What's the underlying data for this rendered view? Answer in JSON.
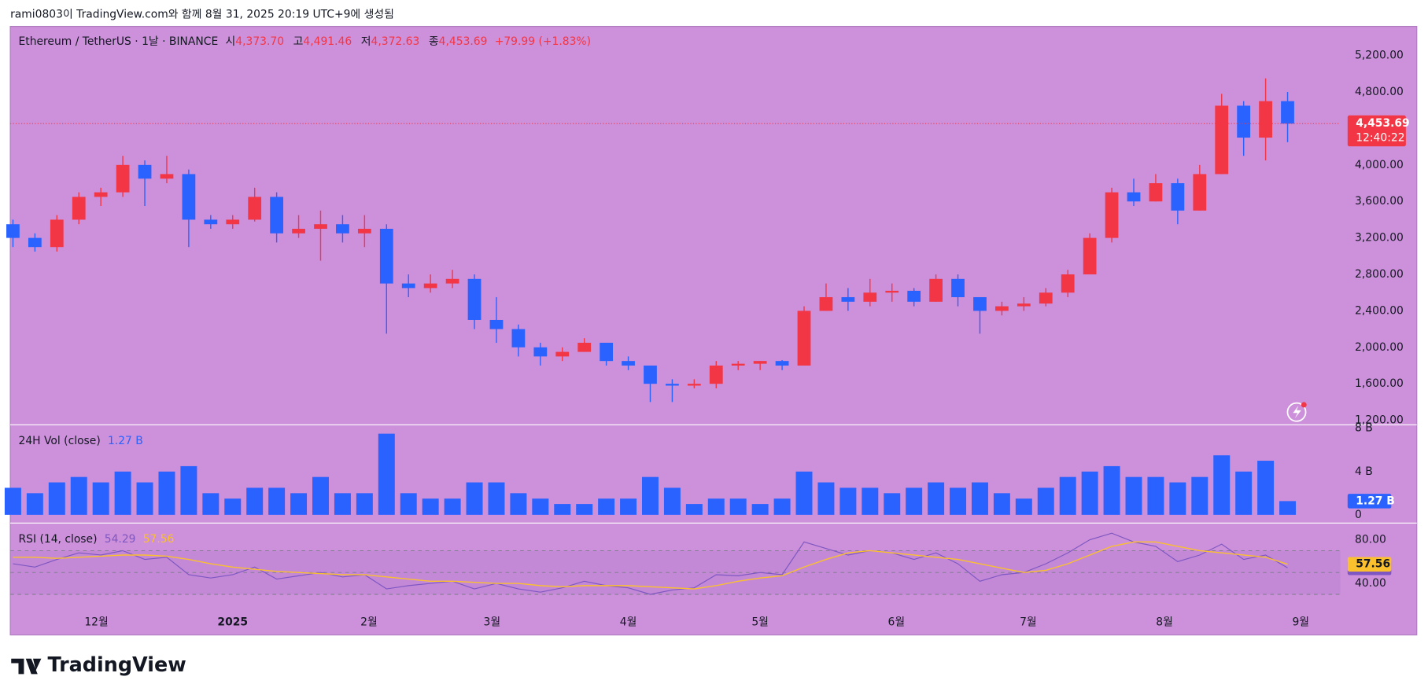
{
  "header": {
    "created": "rami0803이 TradingView.com와 함께 8월 31, 2025 20:19 UTC+9에 생성됨"
  },
  "footer": {
    "brand": "TradingView"
  },
  "chart_data": [
    {
      "type": "candlestick",
      "title": "Ethereum / TetherUS · 1날 · BINANCE",
      "legend_items": [
        {
          "name": "시",
          "value": "4,373.70"
        },
        {
          "name": "고",
          "value": "4,491.46"
        },
        {
          "name": "저",
          "value": "4,372.63"
        },
        {
          "name": "종",
          "value": "4,453.69"
        }
      ],
      "change": "+79.99 (+1.83%)",
      "last_label": {
        "price": "4,453.69",
        "countdown": "12:40:22"
      },
      "up_color": "#f23645",
      "down_color": "#2962ff",
      "grid": false,
      "x": [
        0,
        5,
        10,
        15,
        20,
        25,
        30,
        35,
        40,
        45,
        50,
        55,
        60,
        65,
        70,
        75,
        80,
        85,
        90,
        95,
        100,
        105,
        110,
        115,
        120,
        125,
        130,
        135,
        140,
        145,
        150,
        155,
        160,
        165,
        170,
        175,
        180,
        185,
        190,
        195,
        200,
        205,
        210,
        215,
        220,
        225,
        230,
        235,
        240,
        245,
        250,
        255,
        260,
        265,
        270,
        275,
        280,
        285,
        290
      ],
      "open": [
        3350,
        3200,
        3100,
        3400,
        3650,
        3700,
        4000,
        3850,
        3900,
        3400,
        3350,
        3400,
        3650,
        3250,
        3300,
        3350,
        3250,
        3300,
        2700,
        2650,
        2700,
        2750,
        2300,
        2200,
        2000,
        1900,
        1950,
        2050,
        1850,
        1800,
        1600,
        1580,
        1600,
        1800,
        1820,
        1850,
        1800,
        2400,
        2550,
        2500,
        2600,
        2620,
        2500,
        2750,
        2550,
        2400,
        2450,
        2480,
        2600,
        2800,
        3200,
        3700,
        3600,
        3800,
        3500,
        3900,
        4650,
        4300,
        4700
      ],
      "high": [
        3400,
        3250,
        3450,
        3700,
        3750,
        4100,
        4050,
        4100,
        3950,
        3450,
        3450,
        3750,
        3700,
        3450,
        3500,
        3450,
        3450,
        3350,
        2800,
        2800,
        2850,
        2800,
        2550,
        2250,
        2050,
        2000,
        2100,
        2050,
        1900,
        1800,
        1650,
        1650,
        1850,
        1850,
        1850,
        1860,
        2450,
        2700,
        2650,
        2750,
        2700,
        2650,
        2800,
        2800,
        2550,
        2500,
        2550,
        2650,
        2850,
        3250,
        3750,
        3850,
        3900,
        3850,
        4000,
        4780,
        4700,
        4950,
        4800
      ],
      "low": [
        3100,
        3050,
        3050,
        3350,
        3550,
        3650,
        3550,
        3800,
        3100,
        3300,
        3300,
        3380,
        3150,
        3200,
        2950,
        3150,
        3100,
        2150,
        2550,
        2600,
        2650,
        2200,
        2050,
        1900,
        1800,
        1850,
        1950,
        1800,
        1750,
        1400,
        1400,
        1550,
        1550,
        1750,
        1750,
        1750,
        1800,
        2400,
        2400,
        2450,
        2500,
        2450,
        2500,
        2450,
        2150,
        2350,
        2400,
        2450,
        2550,
        2800,
        3150,
        3550,
        3600,
        3350,
        3500,
        3900,
        4100,
        4050,
        4250
      ],
      "close": [
        3200,
        3100,
        3400,
        3650,
        3700,
        4000,
        3850,
        3900,
        3400,
        3350,
        3400,
        3650,
        3250,
        3300,
        3350,
        3250,
        3300,
        2700,
        2650,
        2700,
        2750,
        2300,
        2200,
        2000,
        1900,
        1950,
        2050,
        1850,
        1800,
        1600,
        1580,
        1600,
        1800,
        1820,
        1850,
        1800,
        2400,
        2550,
        2500,
        2600,
        2620,
        2500,
        2750,
        2550,
        2400,
        2450,
        2480,
        2600,
        2800,
        3200,
        3700,
        3600,
        3800,
        3500,
        3900,
        4650,
        4300,
        4700,
        4453.69
      ],
      "xlim": [
        -0.6,
        302
      ],
      "ylim": [
        1150,
        5510
      ],
      "yticks": [
        {
          "value": 1200,
          "label": "1,200.00"
        },
        {
          "value": 1600,
          "label": "1,600.00"
        },
        {
          "value": 2000,
          "label": "2,000.00"
        },
        {
          "value": 2400,
          "label": "2,400.00"
        },
        {
          "value": 2800,
          "label": "2,800.00"
        },
        {
          "value": 3200,
          "label": "3,200.00"
        },
        {
          "value": 3600,
          "label": "3,600.00"
        },
        {
          "value": 4000,
          "label": "4,000.00"
        },
        {
          "value": 4800,
          "label": "4,800.00"
        },
        {
          "value": 5200,
          "label": "5,200.00"
        }
      ]
    },
    {
      "type": "bar",
      "title": "24H Vol (close)",
      "color": "#2962ff",
      "x": [
        0,
        5,
        10,
        15,
        20,
        25,
        30,
        35,
        40,
        45,
        50,
        55,
        60,
        65,
        70,
        75,
        80,
        85,
        90,
        95,
        100,
        105,
        110,
        115,
        120,
        125,
        130,
        135,
        140,
        145,
        150,
        155,
        160,
        165,
        170,
        175,
        180,
        185,
        190,
        195,
        200,
        205,
        210,
        215,
        220,
        225,
        230,
        235,
        240,
        245,
        250,
        255,
        260,
        265,
        270,
        275,
        280,
        285,
        290
      ],
      "values": [
        2.5,
        2.0,
        3.0,
        3.5,
        3.0,
        4.0,
        3.0,
        4.0,
        4.5,
        2.0,
        1.5,
        2.5,
        2.5,
        2.0,
        3.5,
        2.0,
        2.0,
        7.5,
        2.0,
        1.5,
        1.5,
        3.0,
        3.0,
        2.0,
        1.5,
        1.0,
        1.0,
        1.5,
        1.5,
        3.5,
        2.5,
        1.0,
        1.5,
        1.5,
        1.0,
        1.5,
        4.0,
        3.0,
        2.5,
        2.5,
        2.0,
        2.5,
        3.0,
        2.5,
        3.0,
        2.0,
        1.5,
        2.5,
        3.5,
        4.0,
        4.5,
        3.5,
        3.5,
        3.0,
        3.5,
        5.5,
        4.0,
        5.0,
        1.27
      ],
      "value_labels": [
        null,
        null,
        null,
        null,
        null,
        null,
        null,
        null,
        null,
        null,
        null,
        null,
        null,
        null,
        null,
        null,
        null,
        null,
        null,
        null,
        null,
        null,
        null,
        null,
        null,
        null,
        null,
        null,
        null,
        null,
        null,
        null,
        null,
        null,
        null,
        null,
        null,
        null,
        null,
        null,
        null,
        null,
        null,
        null,
        null,
        null,
        null,
        null,
        null,
        null,
        null,
        null,
        null,
        null,
        null,
        null,
        null,
        null,
        "1.27 B"
      ],
      "xlim": [
        -0.6,
        302
      ],
      "ylim": [
        -0.76,
        8.32
      ],
      "yticks": [
        0,
        {
          "value": 4,
          "label": "4 B"
        },
        {
          "value": 8,
          "label": "8 B"
        }
      ]
    },
    {
      "type": "line",
      "title": "RSI (14, close)",
      "x": [
        0,
        5,
        10,
        15,
        20,
        25,
        30,
        35,
        40,
        45,
        50,
        55,
        60,
        65,
        70,
        75,
        80,
        85,
        90,
        95,
        100,
        105,
        110,
        115,
        120,
        125,
        130,
        135,
        140,
        145,
        150,
        155,
        160,
        165,
        170,
        175,
        180,
        185,
        190,
        195,
        200,
        205,
        210,
        215,
        220,
        225,
        230,
        235,
        240,
        245,
        250,
        255,
        260,
        265,
        270,
        275,
        280,
        285,
        290
      ],
      "series": [
        {
          "color": "#7e57c2",
          "values": [
            58,
            55,
            62,
            68,
            66,
            70,
            62,
            64,
            48,
            45,
            48,
            55,
            44,
            47,
            50,
            46,
            48,
            35,
            38,
            40,
            42,
            35,
            40,
            35,
            32,
            36,
            42,
            38,
            36,
            30,
            34,
            36,
            48,
            47,
            50,
            48,
            78,
            72,
            66,
            70,
            68,
            62,
            68,
            58,
            42,
            48,
            50,
            58,
            68,
            80,
            86,
            78,
            74,
            60,
            66,
            76,
            62,
            66,
            54.29
          ]
        },
        {
          "color": "#fbc02d",
          "values": [
            64,
            64,
            63,
            64,
            65,
            66,
            66,
            65,
            62,
            58,
            55,
            53,
            51,
            50,
            49,
            48,
            48,
            46,
            44,
            42,
            42,
            41,
            40,
            40,
            38,
            37,
            38,
            38,
            38,
            37,
            36,
            35,
            38,
            42,
            45,
            47,
            55,
            62,
            68,
            70,
            68,
            66,
            64,
            62,
            58,
            54,
            50,
            52,
            58,
            66,
            74,
            78,
            78,
            74,
            70,
            68,
            66,
            64,
            57.56
          ]
        }
      ],
      "levels": [
        70,
        50,
        30
      ],
      "xlim": [
        -0.6,
        302
      ],
      "ylim": [
        15.3,
        95.3
      ],
      "yticks": [
        {
          "value": 80,
          "label": "80.00"
        },
        {
          "value": 40,
          "label": "40.00"
        }
      ],
      "xticks": [
        {
          "value": 19,
          "label": "12월"
        },
        {
          "value": 50,
          "label": "2025"
        },
        {
          "value": 81,
          "label": "2월"
        },
        {
          "value": 109,
          "label": "3월"
        },
        {
          "value": 140,
          "label": "4월"
        },
        {
          "value": 170,
          "label": "5월"
        },
        {
          "value": 201,
          "label": "6월"
        },
        {
          "value": 231,
          "label": "7월"
        },
        {
          "value": 262,
          "label": "8월"
        },
        {
          "value": 293,
          "label": "9월"
        }
      ]
    }
  ]
}
